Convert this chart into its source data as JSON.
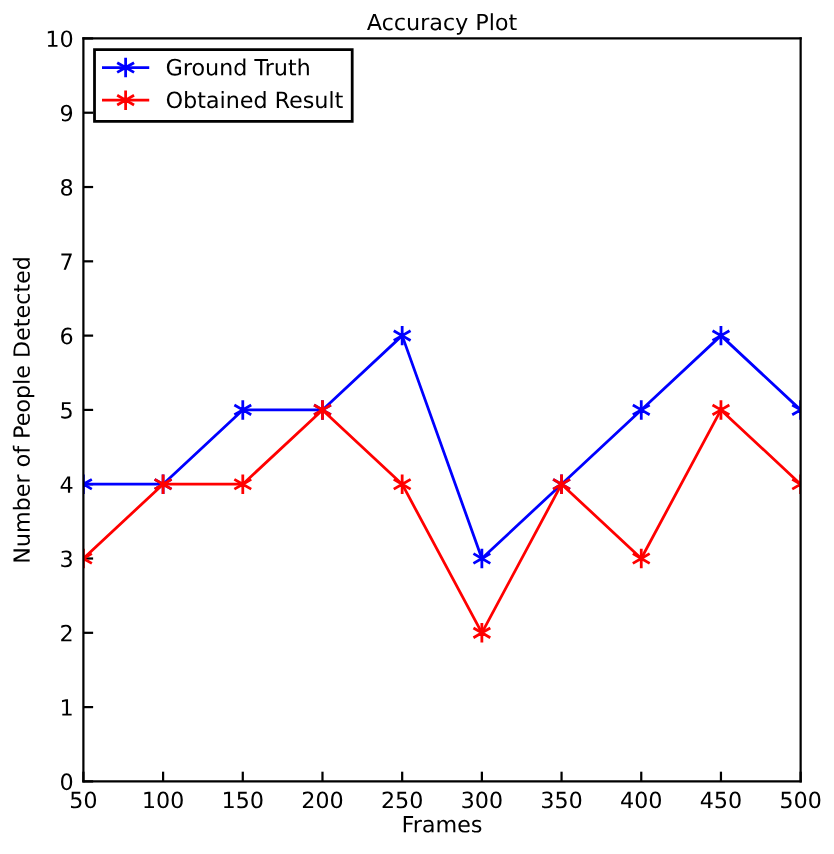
{
  "chart_data": {
    "type": "line",
    "title": "Accuracy Plot",
    "xlabel": "Frames",
    "ylabel": "Number of People Detected",
    "x": [
      50,
      100,
      150,
      200,
      250,
      300,
      350,
      400,
      450,
      500
    ],
    "series": [
      {
        "name": "Ground Truth",
        "color": "#0000ff",
        "values": [
          4,
          4,
          5,
          5,
          6,
          3,
          4,
          5,
          6,
          5
        ]
      },
      {
        "name": "Obtained Result",
        "color": "#ff0000",
        "values": [
          3,
          4,
          4,
          5,
          4,
          2,
          4,
          3,
          5,
          4
        ]
      }
    ],
    "xlim": [
      50,
      500
    ],
    "xticks": [
      50,
      100,
      150,
      200,
      250,
      300,
      350,
      400,
      450,
      500
    ],
    "ylim": [
      0,
      10
    ],
    "yticks": [
      0,
      1,
      2,
      3,
      4,
      5,
      6,
      7,
      8,
      9,
      10
    ],
    "marker": "cross",
    "line_style": "solid",
    "legend": "top left",
    "grid": false
  }
}
